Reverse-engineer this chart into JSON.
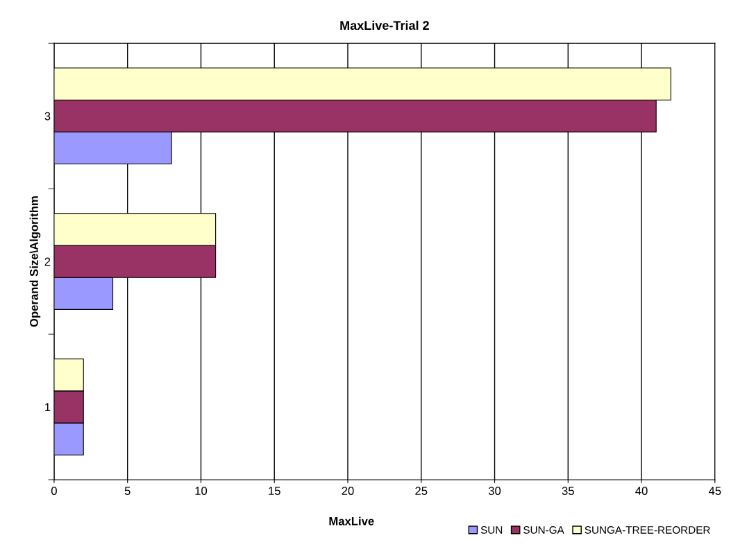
{
  "chart_data": {
    "type": "bar",
    "orientation": "horizontal",
    "title": "MaxLive-Trial 2",
    "xlabel": "MaxLive",
    "ylabel": "Operand Size\\Algorithm",
    "categories": [
      "3",
      "2",
      "1"
    ],
    "series": [
      {
        "name": "SUN",
        "color": "#9999ff",
        "values": [
          8,
          4,
          2
        ]
      },
      {
        "name": "SUN-GA",
        "color": "#993366",
        "values": [
          41,
          11,
          2
        ]
      },
      {
        "name": "SUNGA-TREE-REORDER",
        "color": "#ffffcc",
        "values": [
          42,
          11,
          2
        ]
      }
    ],
    "xlim": [
      0,
      45
    ],
    "xticks": [
      0,
      5,
      10,
      15,
      20,
      25,
      30,
      35,
      40,
      45
    ],
    "grid": "x",
    "legend": "bottom right"
  }
}
